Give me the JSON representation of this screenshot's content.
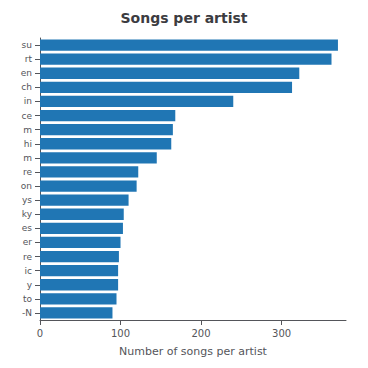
{
  "chart_data": {
    "type": "bar",
    "orientation": "horizontal",
    "title": "Songs per artist",
    "xlabel": "Number of songs per artist",
    "categories": [
      "su",
      "rt",
      "en",
      "ch",
      "in",
      "ce",
      "m",
      "hi",
      "m",
      "re",
      "on",
      "ys",
      "ky",
      "es",
      "er",
      "re",
      "ic",
      "y",
      "to",
      "-N"
    ],
    "values": [
      370,
      362,
      322,
      313,
      240,
      168,
      165,
      163,
      145,
      122,
      120,
      110,
      104,
      103,
      100,
      98,
      97,
      97,
      95,
      90
    ],
    "color": "#2076b4",
    "xlim": [
      0,
      380
    ],
    "xticks": [
      0,
      100,
      200,
      300
    ],
    "grid": false
  }
}
